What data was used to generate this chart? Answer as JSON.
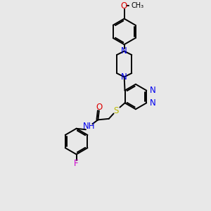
{
  "bg_color": "#e8e8e8",
  "line_color": "#000000",
  "N_color": "#0000ee",
  "O_color": "#dd0000",
  "F_color": "#cc00cc",
  "S_color": "#bbbb00",
  "bond_lw": 1.4,
  "font_size": 8.5,
  "fig_size": [
    3.0,
    3.0
  ],
  "dpi": 100,
  "xlim": [
    0,
    10
  ],
  "ylim": [
    0,
    10
  ]
}
